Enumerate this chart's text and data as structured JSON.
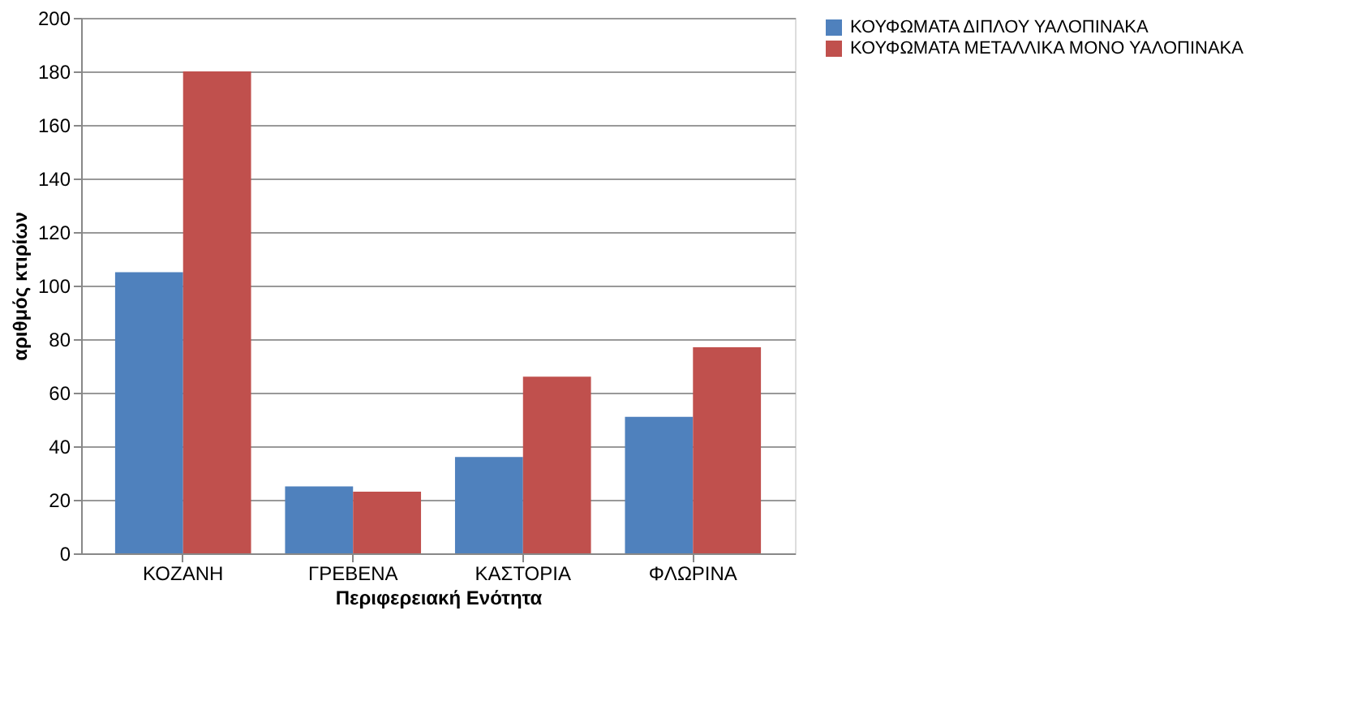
{
  "chart_data": {
    "type": "bar",
    "xlabel": "Περιφερειακή Ενότητα",
    "ylabel": "αριθμός κτιρίων",
    "categories": [
      "ΚΟΖΑΝΗ",
      "ΓΡΕΒΕΝΑ",
      "ΚΑΣΤΟΡΙΑ",
      "ΦΛΩΡΙΝΑ"
    ],
    "series": [
      {
        "name": "ΚΟΥΦΩΜΑΤΑ ΔΙΠΛΟΥ ΥΑΛΟΠΙΝΑΚΑ",
        "color": "#4f81bd",
        "values": [
          105,
          25,
          36,
          51
        ]
      },
      {
        "name": "ΚΟΥΦΩΜΑΤΑ ΜΕΤΑΛΛΙΚΑ ΜΟΝΟ ΥΑΛΟΠΙΝΑΚΑ",
        "color": "#c0504d",
        "values": [
          180,
          23,
          66,
          77
        ]
      }
    ],
    "ylim": [
      0,
      200
    ],
    "yticks": [
      0,
      20,
      40,
      60,
      80,
      100,
      120,
      140,
      160,
      180,
      200
    ],
    "grid": "y",
    "legend": "right"
  }
}
